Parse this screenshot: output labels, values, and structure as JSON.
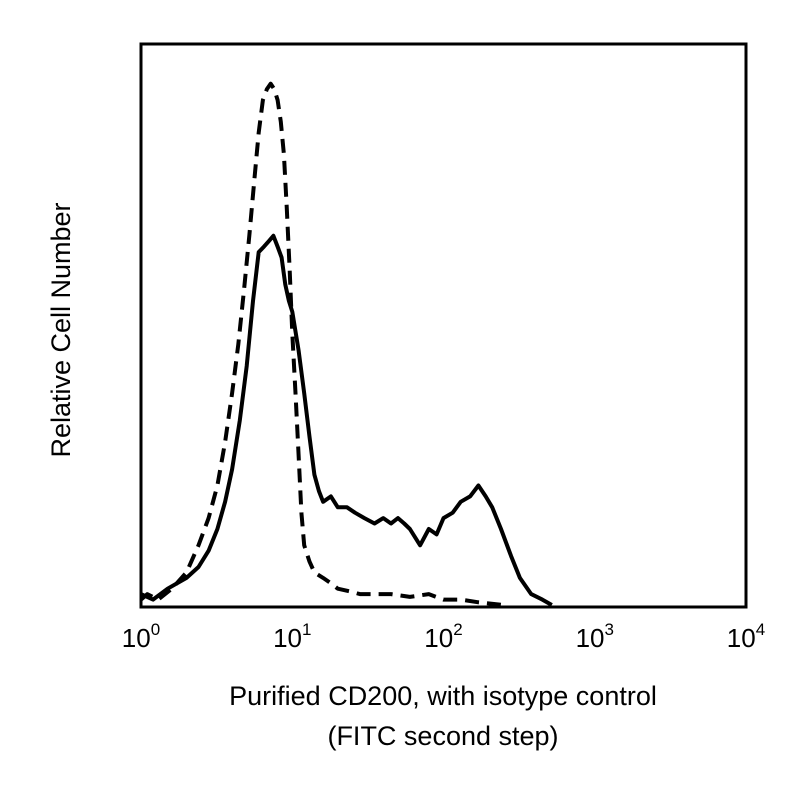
{
  "chart_data": {
    "type": "line",
    "title": "",
    "xlabel_lines": [
      "Purified CD200, with isotype control",
      "(FITC second step)"
    ],
    "ylabel": "Relative Cell Number",
    "x_scale": "log",
    "xlim": [
      1,
      10000
    ],
    "ylim": [
      0,
      100
    ],
    "x_ticks": [
      {
        "value": 1,
        "base": "10",
        "exp": "0"
      },
      {
        "value": 10,
        "base": "10",
        "exp": "1"
      },
      {
        "value": 100,
        "base": "10",
        "exp": "2"
      },
      {
        "value": 1000,
        "base": "10",
        "exp": "3"
      },
      {
        "value": 10000,
        "base": "10",
        "exp": "4"
      }
    ],
    "grid": false,
    "legend": "none",
    "series": [
      {
        "style": "dashed",
        "color": "#000000",
        "x": [
          1.0,
          1.1,
          1.3,
          1.6,
          2.0,
          2.4,
          2.8,
          3.2,
          3.6,
          4.0,
          4.4,
          4.8,
          5.2,
          5.6,
          6.0,
          6.4,
          6.8,
          7.2,
          7.6,
          8.0,
          8.4,
          8.8,
          9.2,
          9.6,
          10.0,
          10.5,
          11.0,
          11.5,
          12.0,
          13.0,
          14.0,
          16.0,
          18.0,
          20.0,
          24.0,
          28.0,
          35.0,
          45.0,
          60.0,
          80.0,
          100.0,
          130.0,
          170.0,
          250.0
        ],
        "y": [
          1,
          2,
          1,
          3,
          6,
          11,
          16,
          22,
          30,
          39,
          48,
          58,
          68,
          78,
          87,
          93,
          95,
          96,
          95,
          93,
          89,
          83,
          73,
          62,
          50,
          39,
          28,
          17,
          11,
          8,
          6,
          5,
          4,
          3,
          2.5,
          2,
          2,
          2,
          1.5,
          2,
          1,
          1,
          0.5,
          0
        ]
      },
      {
        "style": "solid",
        "color": "#000000",
        "x": [
          1.0,
          1.2,
          1.5,
          2.0,
          2.4,
          2.8,
          3.2,
          3.6,
          4.0,
          4.5,
          5.0,
          5.5,
          6.0,
          6.5,
          7.0,
          7.5,
          8.0,
          8.5,
          9.0,
          9.5,
          10.0,
          11.0,
          12.0,
          13.0,
          14.0,
          15.0,
          16.0,
          18.0,
          20.0,
          23.0,
          26.0,
          30.0,
          35.0,
          40.0,
          45.0,
          50.0,
          55.0,
          60.0,
          70.0,
          80.0,
          90.0,
          100.0,
          115.0,
          130.0,
          150.0,
          170.0,
          190.0,
          210.0,
          240.0,
          280.0,
          320.0,
          380.0,
          450.0,
          520.0
        ],
        "y": [
          2,
          1,
          3,
          5,
          7,
          10,
          14,
          19,
          25,
          34,
          44,
          56,
          65,
          66,
          67,
          68,
          66,
          64,
          59,
          56,
          54,
          47,
          39,
          31,
          24,
          21,
          19,
          20,
          18,
          18,
          17,
          16,
          15,
          16,
          15,
          16,
          15,
          14,
          11,
          14,
          13,
          16,
          17,
          19,
          20,
          22,
          20,
          18,
          14,
          9,
          5,
          2,
          1,
          0
        ]
      }
    ]
  }
}
